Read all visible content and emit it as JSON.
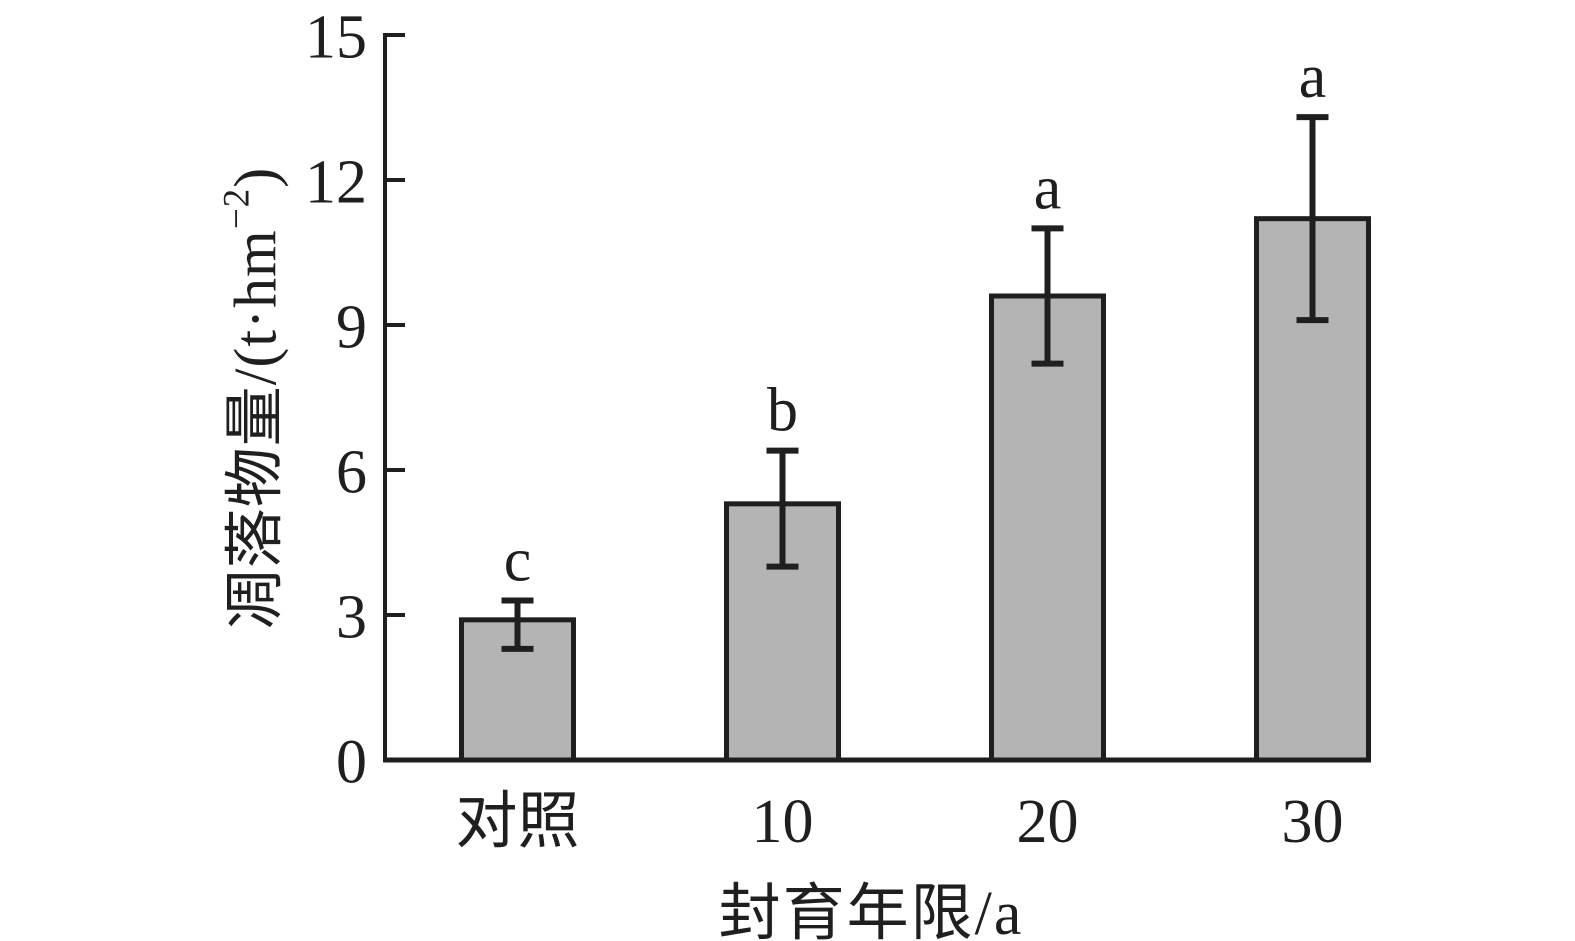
{
  "figure": {
    "background": "#ffffff",
    "bar_fill": "#b4b4b4",
    "line_color": "#1f1f1f",
    "ylabel_parts": {
      "prefix": "凋落物量/(t·hm",
      "superscript": "−2",
      "suffix": ")"
    },
    "xlabel": "封育年限/a"
  },
  "chart_data": {
    "type": "bar",
    "title": "",
    "xlabel": "封育年限/a",
    "ylabel": "凋落物量/(t·hm⁻²)",
    "categories": [
      "对照",
      "10",
      "20",
      "30"
    ],
    "values": [
      2.9,
      5.3,
      9.6,
      11.2
    ],
    "error_bars": {
      "upper": [
        3.3,
        6.4,
        11.0,
        13.3
      ],
      "lower": [
        2.3,
        4.0,
        8.2,
        9.1
      ]
    },
    "significance_letters": [
      "c",
      "b",
      "a",
      "a"
    ],
    "yticks": [
      0,
      3,
      6,
      9,
      12,
      15
    ],
    "ylim": [
      0,
      15
    ],
    "grid": false,
    "legend": false,
    "tick_direction": "in",
    "bar_border": true
  }
}
